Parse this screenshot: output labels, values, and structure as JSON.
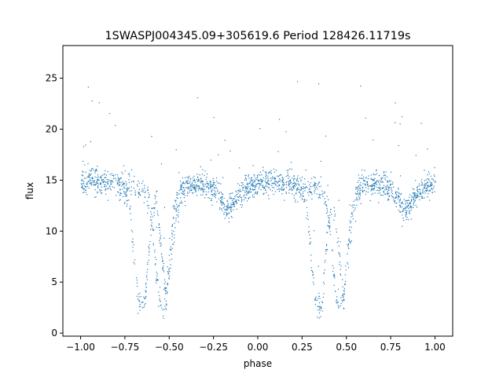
{
  "chart_data": {
    "type": "scatter",
    "title": "1SWASPJ004345.09+305619.6 Period 128426.11719s",
    "xlabel": "phase",
    "ylabel": "flux",
    "xlim": [
      -1.1,
      1.1
    ],
    "ylim": [
      -0.3,
      28.2
    ],
    "xticks": [
      -1.0,
      -0.75,
      -0.5,
      -0.25,
      0.0,
      0.25,
      0.5,
      0.75,
      1.0
    ],
    "xtick_labels": [
      "−1.00",
      "−0.75",
      "−0.50",
      "−0.25",
      "0.00",
      "0.25",
      "0.50",
      "0.75",
      "1.00"
    ],
    "yticks": [
      0,
      5,
      10,
      15,
      20,
      25
    ],
    "ytick_labels": [
      "0",
      "5",
      "10",
      "15",
      "20",
      "25"
    ],
    "grid": false,
    "legend": "none",
    "marker_color": "#1f77b4",
    "series": [
      {
        "points_note": "",
        "profile": {
          "phase": [
            0.0,
            0.05,
            0.1,
            0.15,
            0.2,
            0.25,
            0.28,
            0.3,
            0.32,
            0.34,
            0.36,
            0.38,
            0.4,
            0.42,
            0.45,
            0.48,
            0.5,
            0.55,
            0.6,
            0.65,
            0.7,
            0.75,
            0.8,
            0.82,
            0.85,
            0.9,
            0.95,
            1.0
          ],
          "flux": [
            14.6,
            15.0,
            14.9,
            14.6,
            14.3,
            13.8,
            11.5,
            7.0,
            3.5,
            2.6,
            3.0,
            7.5,
            11.0,
            13.2,
            9.0,
            3.5,
            6.0,
            13.8,
            14.5,
            14.7,
            14.6,
            14.2,
            13.0,
            12.0,
            12.5,
            13.8,
            14.5,
            14.6
          ]
        }
      }
    ]
  }
}
